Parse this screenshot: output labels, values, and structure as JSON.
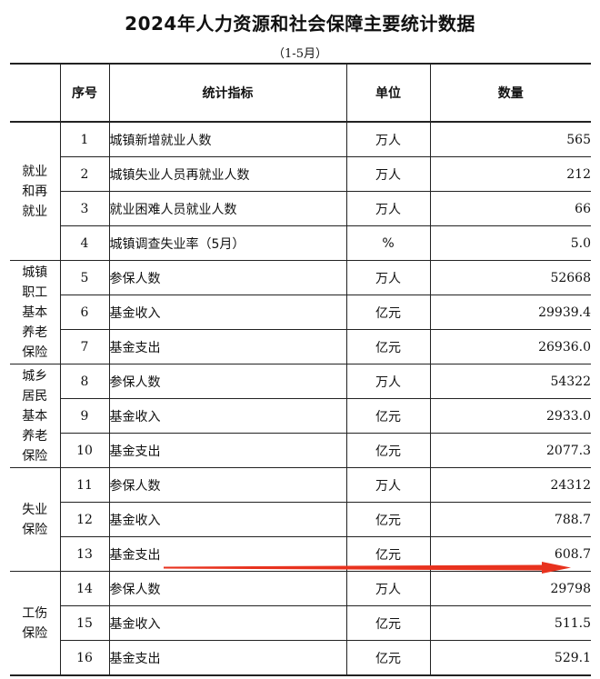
{
  "title": "2024年人力资源和社会保障主要统计数据",
  "subtitle": "（1-5月）",
  "headers": {
    "no": "序号",
    "indicator": "统计指标",
    "unit": "单位",
    "value": "数量"
  },
  "groups": [
    {
      "name_lines": [
        "就业",
        "和再",
        "就业"
      ],
      "name": "就业和再就业",
      "rows": [
        {
          "no": "1",
          "indicator": "城镇新增就业人数",
          "unit": "万人",
          "value": "565"
        },
        {
          "no": "2",
          "indicator": "城镇失业人员再就业人数",
          "unit": "万人",
          "value": "212"
        },
        {
          "no": "3",
          "indicator": "就业困难人员就业人数",
          "unit": "万人",
          "value": "66"
        },
        {
          "no": "4",
          "indicator": "城镇调查失业率（5月）",
          "unit": "%",
          "value": "5.0"
        }
      ]
    },
    {
      "name_lines": [
        "城镇",
        "职工",
        "基本",
        "养老",
        "保险"
      ],
      "name": "城镇职工基本养老保险",
      "rows": [
        {
          "no": "5",
          "indicator": "参保人数",
          "unit": "万人",
          "value": "52668"
        },
        {
          "no": "6",
          "indicator": "基金收入",
          "unit": "亿元",
          "value": "29939.4"
        },
        {
          "no": "7",
          "indicator": "基金支出",
          "unit": "亿元",
          "value": "26936.0"
        }
      ]
    },
    {
      "name_lines": [
        "城乡",
        "居民",
        "基本",
        "养老",
        "保险"
      ],
      "name": "城乡居民基本养老保险",
      "rows": [
        {
          "no": "8",
          "indicator": "参保人数",
          "unit": "万人",
          "value": "54322"
        },
        {
          "no": "9",
          "indicator": "基金收入",
          "unit": "亿元",
          "value": "2933.0"
        },
        {
          "no": "10",
          "indicator": "基金支出",
          "unit": "亿元",
          "value": "2077.3"
        }
      ]
    },
    {
      "name_lines": [
        "失业",
        "保险"
      ],
      "name": "失业保险",
      "rows": [
        {
          "no": "11",
          "indicator": "参保人数",
          "unit": "万人",
          "value": "24312"
        },
        {
          "no": "12",
          "indicator": "基金收入",
          "unit": "亿元",
          "value": "788.7"
        },
        {
          "no": "13",
          "indicator": "基金支出",
          "unit": "亿元",
          "value": "608.7"
        }
      ]
    },
    {
      "name_lines": [
        "工伤",
        "保险"
      ],
      "name": "工伤保险",
      "rows": [
        {
          "no": "14",
          "indicator": "参保人数",
          "unit": "万人",
          "value": "29798"
        },
        {
          "no": "15",
          "indicator": "基金收入",
          "unit": "亿元",
          "value": "511.5"
        },
        {
          "no": "16",
          "indicator": "基金支出",
          "unit": "亿元",
          "value": "529.1"
        }
      ]
    }
  ],
  "annotation": {
    "type": "arrow",
    "color": "#e8321e",
    "icon": "red-arrow-annotation-icon"
  }
}
